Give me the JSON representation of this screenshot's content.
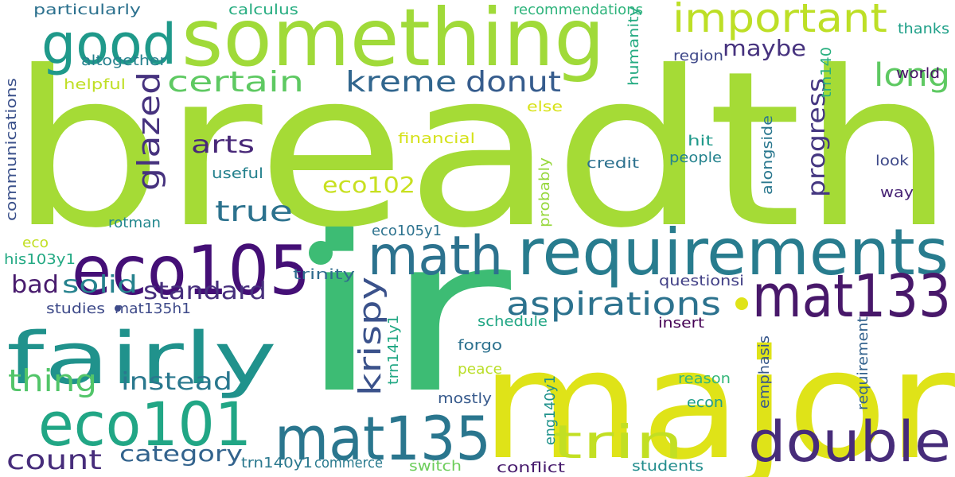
{
  "words": [
    {
      "text": "breadth",
      "color": "#a5db36"
    },
    {
      "text": "ir",
      "color": "#3dbc74"
    },
    {
      "text": "major",
      "color": "#dfe318"
    },
    {
      "text": "something",
      "color": "#a0da39"
    },
    {
      "text": "requirements",
      "color": "#287c8e"
    },
    {
      "text": "eco105",
      "color": "#440f76"
    },
    {
      "text": "fairly",
      "color": "#20928c"
    },
    {
      "text": "math",
      "color": "#2c728e"
    },
    {
      "text": "mat133",
      "color": "#48186a"
    },
    {
      "text": "mat135",
      "color": "#2a768e"
    },
    {
      "text": "eco101",
      "color": "#21a685"
    },
    {
      "text": "double",
      "color": "#472c7a"
    },
    {
      "text": "good",
      "color": "#1f998a"
    },
    {
      "text": "important",
      "color": "#bddf26"
    },
    {
      "text": "trin",
      "color": "#c2df23"
    },
    {
      "text": "aspirations",
      "color": "#2c728e"
    },
    {
      "text": "long",
      "color": "#5ec962"
    },
    {
      "text": "kreme",
      "color": "#31668e"
    },
    {
      "text": "donut",
      "color": "#365c8d"
    },
    {
      "text": "certain",
      "color": "#5ec962"
    },
    {
      "text": "true",
      "color": "#2c728e"
    },
    {
      "text": "thing",
      "color": "#52c569"
    },
    {
      "text": "count",
      "color": "#472d7b"
    },
    {
      "text": "glazed",
      "color": "#46327e"
    },
    {
      "text": "krispy",
      "color": "#3b528b"
    },
    {
      "text": "arts",
      "color": "#482878"
    },
    {
      "text": "progress",
      "color": "#453781"
    },
    {
      "text": "standard",
      "color": "#472f7d"
    },
    {
      "text": "solid",
      "color": "#26828e"
    },
    {
      "text": "bad",
      "color": "#481b6d"
    },
    {
      "text": "instead",
      "color": "#2a788e"
    },
    {
      "text": "category",
      "color": "#33638d"
    },
    {
      "text": "eco102",
      "color": "#c8e020"
    },
    {
      "text": "maybe",
      "color": "#46327e"
    },
    {
      "text": "particularly",
      "color": "#2c718e"
    },
    {
      "text": "calculus",
      "color": "#27ad81"
    },
    {
      "text": "recommendations",
      "color": "#2fb47c"
    },
    {
      "text": "thanks",
      "color": "#1fa088"
    },
    {
      "text": "altogether",
      "color": "#26818e"
    },
    {
      "text": "helpful",
      "color": "#c0df25"
    },
    {
      "text": "region",
      "color": "#3f4889"
    },
    {
      "text": "world",
      "color": "#481467"
    },
    {
      "text": "trn140",
      "color": "#29af7f"
    },
    {
      "text": "humanity",
      "color": "#25ab82"
    },
    {
      "text": "communications",
      "color": "#3b518b"
    },
    {
      "text": "else",
      "color": "#d8e219"
    },
    {
      "text": "financial",
      "color": "#d5e21a"
    },
    {
      "text": "hit",
      "color": "#1f998a"
    },
    {
      "text": "people",
      "color": "#25838e"
    },
    {
      "text": "credit",
      "color": "#2c718e"
    },
    {
      "text": "alongside",
      "color": "#2a778e"
    },
    {
      "text": "look",
      "color": "#3e4989"
    },
    {
      "text": "way",
      "color": "#482475"
    },
    {
      "text": "useful",
      "color": "#26828e"
    },
    {
      "text": "probably",
      "color": "#98d83e"
    },
    {
      "text": "rotman",
      "color": "#23888e"
    },
    {
      "text": "eco105y1",
      "color": "#2c728e"
    },
    {
      "text": "eco",
      "color": "#c2df23"
    },
    {
      "text": "his103y1",
      "color": "#23a983"
    },
    {
      "text": "trinity",
      "color": "#2f6c8e"
    },
    {
      "text": "questionsi",
      "color": "#424086"
    },
    {
      "text": "studies",
      "color": "#3e4a89"
    },
    {
      "text": "mat135h1",
      "color": "#3e4a89"
    },
    {
      "text": "schedule",
      "color": "#22a785"
    },
    {
      "text": "insert",
      "color": "#440154"
    },
    {
      "text": "forgo",
      "color": "#2c718e"
    },
    {
      "text": "trn141y1",
      "color": "#22a884"
    },
    {
      "text": "emphasis",
      "color": "#38588c"
    },
    {
      "text": "requirement",
      "color": "#33628d"
    },
    {
      "text": "peace",
      "color": "#bade28"
    },
    {
      "text": "reason",
      "color": "#34b679"
    },
    {
      "text": "econ",
      "color": "#1e9d89"
    },
    {
      "text": "mostly",
      "color": "#375a8c"
    },
    {
      "text": "eng140y1",
      "color": "#20928c"
    },
    {
      "text": "trn140y1",
      "color": "#2a788e"
    },
    {
      "text": "commerce",
      "color": "#297a8e"
    },
    {
      "text": "switch",
      "color": "#6ccd5a"
    },
    {
      "text": "conflict",
      "color": "#481c6e"
    },
    {
      "text": "students",
      "color": "#228d8d"
    }
  ]
}
